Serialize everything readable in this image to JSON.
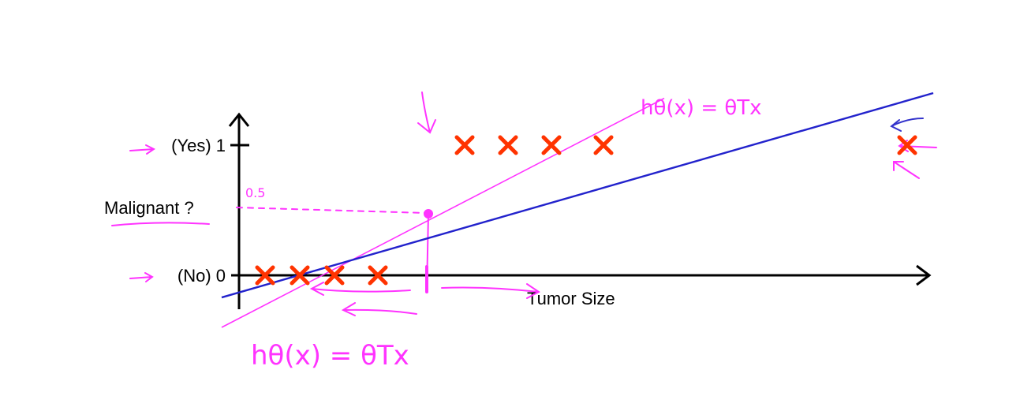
{
  "chart_data": {
    "type": "scatter",
    "title": "",
    "xlabel": "Tumor Size",
    "ylabel": "Malignant ?",
    "y_ticks": [
      {
        "value": 1,
        "label": "(Yes) 1"
      },
      {
        "value": 0,
        "label": "(No) 0"
      }
    ],
    "xlim": [
      0,
      8.5
    ],
    "ylim": [
      -0.25,
      1.25
    ],
    "grid": false,
    "threshold": {
      "value": 0.5,
      "label": "0.5",
      "x_at_threshold": 2.3
    },
    "series": [
      {
        "values": [
          {
            "x": 0.3,
            "y": 0
          },
          {
            "x": 0.7,
            "y": 0
          },
          {
            "x": 1.1,
            "y": 0
          },
          {
            "x": 1.6,
            "y": 0
          },
          {
            "x": 2.6,
            "y": 1
          },
          {
            "x": 3.1,
            "y": 1
          },
          {
            "x": 3.6,
            "y": 1
          },
          {
            "x": 4.2,
            "y": 1
          },
          {
            "x": 7.7,
            "y": 1
          }
        ],
        "color": "#ff3300"
      }
    ],
    "fit_lines": [
      {
        "label": "hθ(x) = θTx",
        "color": "#ff33ff",
        "x": [
          -0.2,
          4.9
        ],
        "y": [
          -0.4,
          1.36
        ]
      },
      {
        "color": "#2222cc",
        "x": [
          -0.2,
          8.0
        ],
        "y": [
          -0.17,
          1.4
        ]
      }
    ]
  },
  "colors": {
    "marker": "#ff3300",
    "annotation": "#ff33ff",
    "fit": "#2222cc",
    "axis": "#000000"
  }
}
